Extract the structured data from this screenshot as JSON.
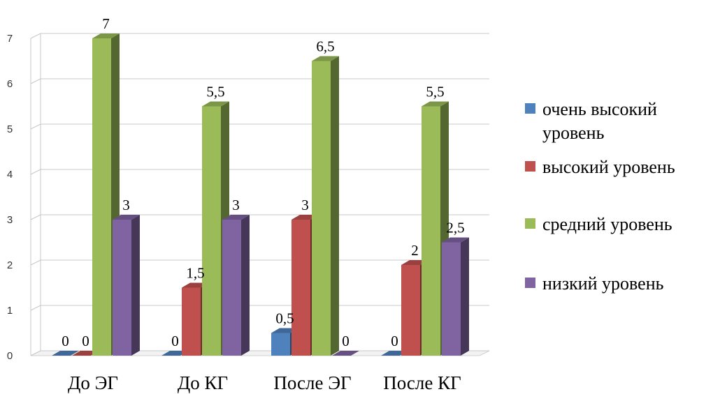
{
  "chart_data": {
    "type": "bar",
    "title": "",
    "xlabel": "",
    "ylabel": "",
    "ylim": [
      0,
      7
    ],
    "yticks": [
      "0",
      "1",
      "2",
      "3",
      "4",
      "5",
      "6",
      "7"
    ],
    "grid": true,
    "legend_position": "right",
    "categories": [
      "До ЭГ",
      "До КГ",
      "После ЭГ",
      "После КГ"
    ],
    "series": [
      {
        "name": "очень высокий уровень",
        "color": "#4f81bd",
        "values": [
          0,
          0,
          0.5,
          0
        ],
        "labels": [
          "0",
          "0",
          "0,5",
          "0"
        ]
      },
      {
        "name": "высокий уровень",
        "color": "#c0504d",
        "values": [
          0,
          1.5,
          3,
          2
        ],
        "labels": [
          "0",
          "1,5",
          "3",
          "2"
        ]
      },
      {
        "name": "средний уровень",
        "color": "#9bbb59",
        "values": [
          7,
          5.5,
          6.5,
          5.5
        ],
        "labels": [
          "7",
          "5,5",
          "6,5",
          "5,5"
        ]
      },
      {
        "name": "низкий уровень",
        "color": "#8064a2",
        "values": [
          3,
          3,
          0,
          2.5
        ],
        "labels": [
          "3",
          "3",
          "0",
          "2,5"
        ]
      }
    ],
    "legend_lines": [
      [
        "очень высокий",
        "уровень"
      ],
      [
        "высокий уровень"
      ],
      [
        "средний уровень"
      ],
      [
        "низкий уровень"
      ]
    ]
  }
}
